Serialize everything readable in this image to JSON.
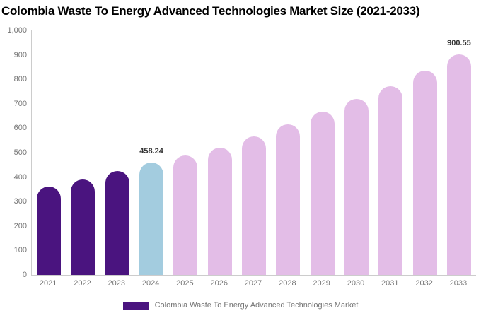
{
  "title": "Colombia Waste To Energy Advanced Technologies Market Size (2021-2033)",
  "legend": {
    "label": "Colombia Waste To Energy Advanced Technologies Market",
    "swatch_color": "#4A147F",
    "position": "bottom"
  },
  "chart_data": {
    "type": "bar",
    "title": "Colombia Waste To Energy Advanced Technologies Market Size (2021-2033)",
    "categories": [
      "2021",
      "2022",
      "2023",
      "2024",
      "2025",
      "2026",
      "2027",
      "2028",
      "2029",
      "2030",
      "2031",
      "2032",
      "2033"
    ],
    "values": [
      360,
      391,
      424,
      458.24,
      490,
      521,
      568,
      616,
      667,
      720,
      773,
      834,
      900.55
    ],
    "data_labels": [
      "",
      "",
      "",
      "458.24",
      "",
      "",
      "",
      "",
      "",
      "",
      "",
      "",
      "900.55"
    ],
    "bar_colors": [
      "#4A147F",
      "#4A147F",
      "#4A147F",
      "#A3CCDF",
      "#E3BDE7",
      "#E3BDE7",
      "#E3BDE7",
      "#E3BDE7",
      "#E3BDE7",
      "#E3BDE7",
      "#E3BDE7",
      "#E3BDE7",
      "#E3BDE7"
    ],
    "xlabel": "",
    "ylabel": "",
    "ylim": [
      0,
      1000
    ],
    "yticks": [
      "1,000",
      "900",
      "800",
      "700",
      "600",
      "500",
      "400",
      "300",
      "200",
      "100",
      "0"
    ],
    "grid": false,
    "legend_entries": [
      "Colombia Waste To Energy Advanced Technologies Market"
    ],
    "legend_position": "bottom",
    "colors_meta": {
      "historical_bar": "#4A147F",
      "base_year_bar": "#A3CCDF",
      "forecast_bar": "#E3BDE7",
      "axis_line": "#cccccc",
      "tick_text": "#757575",
      "value_label_text": "#333333"
    }
  }
}
